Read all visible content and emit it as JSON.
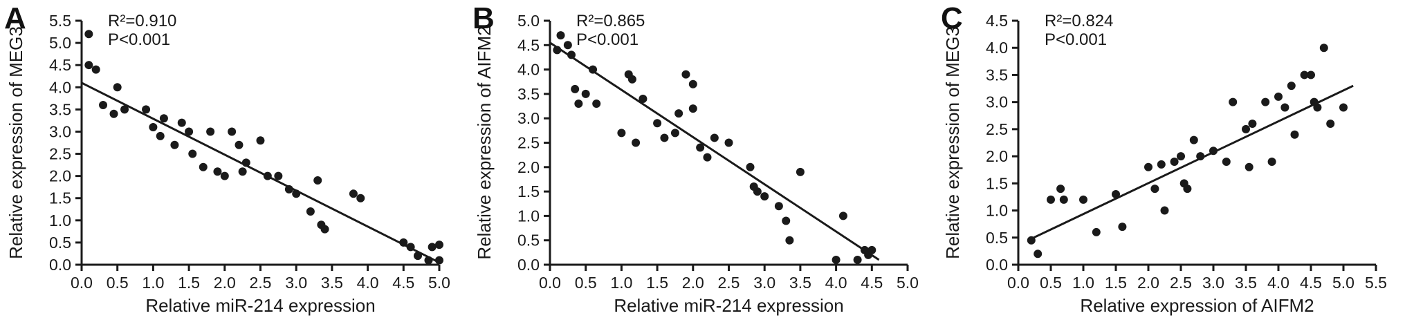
{
  "figure": {
    "background": "#ffffff",
    "ink_color": "#1a1a1a",
    "point_color": "#1a1a1a"
  },
  "chart_data": [
    {
      "type": "scatter",
      "panel_label": "A",
      "annotation": [
        "R²=0.910",
        "P<0.001"
      ],
      "xlabel": "Relative miR-214 expression",
      "ylabel": "Relative expression of MEG3",
      "xlim": [
        0,
        5.0
      ],
      "ylim": [
        0,
        5.5
      ],
      "xtick_step": 0.5,
      "ytick_step": 0.5,
      "legend": "none",
      "grid": false,
      "fit_line": {
        "x1": 0.0,
        "y1": 4.1,
        "x2": 5.0,
        "y2": 0.05
      },
      "points": [
        [
          0.1,
          5.2
        ],
        [
          0.1,
          4.5
        ],
        [
          0.2,
          4.4
        ],
        [
          0.3,
          3.6
        ],
        [
          0.45,
          3.4
        ],
        [
          0.5,
          4.0
        ],
        [
          0.6,
          3.5
        ],
        [
          0.9,
          3.5
        ],
        [
          1.0,
          3.1
        ],
        [
          1.1,
          2.9
        ],
        [
          1.15,
          3.3
        ],
        [
          1.3,
          2.7
        ],
        [
          1.4,
          3.2
        ],
        [
          1.5,
          3.0
        ],
        [
          1.55,
          2.5
        ],
        [
          1.7,
          2.2
        ],
        [
          1.8,
          3.0
        ],
        [
          1.9,
          2.1
        ],
        [
          2.0,
          2.0
        ],
        [
          2.1,
          3.0
        ],
        [
          2.2,
          2.7
        ],
        [
          2.25,
          2.1
        ],
        [
          2.3,
          2.3
        ],
        [
          2.5,
          2.8
        ],
        [
          2.6,
          2.0
        ],
        [
          2.75,
          2.0
        ],
        [
          2.9,
          1.7
        ],
        [
          3.0,
          1.6
        ],
        [
          3.2,
          1.2
        ],
        [
          3.3,
          1.9
        ],
        [
          3.35,
          0.9
        ],
        [
          3.4,
          0.8
        ],
        [
          3.8,
          1.6
        ],
        [
          3.9,
          1.5
        ],
        [
          4.5,
          0.5
        ],
        [
          4.6,
          0.4
        ],
        [
          4.7,
          0.2
        ],
        [
          4.85,
          0.1
        ],
        [
          4.9,
          0.4
        ],
        [
          5.0,
          0.1
        ],
        [
          5.0,
          0.45
        ]
      ]
    },
    {
      "type": "scatter",
      "panel_label": "B",
      "annotation": [
        "R²=0.865",
        "P<0.001"
      ],
      "xlabel": "Relative miR-214 expression",
      "ylabel": "Relative expression of AIFM2",
      "xlim": [
        0,
        5.0
      ],
      "ylim": [
        0,
        5.0
      ],
      "xtick_step": 0.5,
      "ytick_step": 0.5,
      "legend": "none",
      "grid": false,
      "fit_line": {
        "x1": 0.0,
        "y1": 4.55,
        "x2": 4.6,
        "y2": 0.1
      },
      "points": [
        [
          0.1,
          4.4
        ],
        [
          0.15,
          4.7
        ],
        [
          0.25,
          4.5
        ],
        [
          0.3,
          4.3
        ],
        [
          0.35,
          3.6
        ],
        [
          0.4,
          3.3
        ],
        [
          0.5,
          3.5
        ],
        [
          0.6,
          4.0
        ],
        [
          0.65,
          3.3
        ],
        [
          1.0,
          2.7
        ],
        [
          1.1,
          3.9
        ],
        [
          1.15,
          3.8
        ],
        [
          1.2,
          2.5
        ],
        [
          1.3,
          3.4
        ],
        [
          1.5,
          2.9
        ],
        [
          1.6,
          2.6
        ],
        [
          1.75,
          2.7
        ],
        [
          1.8,
          3.1
        ],
        [
          1.9,
          3.9
        ],
        [
          2.0,
          3.7
        ],
        [
          2.0,
          3.2
        ],
        [
          2.1,
          2.4
        ],
        [
          2.2,
          2.2
        ],
        [
          2.3,
          2.6
        ],
        [
          2.5,
          2.5
        ],
        [
          2.8,
          2.0
        ],
        [
          2.85,
          1.6
        ],
        [
          2.9,
          1.5
        ],
        [
          3.0,
          1.4
        ],
        [
          3.2,
          1.2
        ],
        [
          3.3,
          0.9
        ],
        [
          3.35,
          0.5
        ],
        [
          3.5,
          1.9
        ],
        [
          4.0,
          0.1
        ],
        [
          4.1,
          1.0
        ],
        [
          4.3,
          0.1
        ],
        [
          4.4,
          0.3
        ],
        [
          4.45,
          0.2
        ],
        [
          4.5,
          0.3
        ]
      ]
    },
    {
      "type": "scatter",
      "panel_label": "C",
      "annotation": [
        "R²=0.824",
        "P<0.001"
      ],
      "xlabel": "Relative expression of AIFM2",
      "ylabel": "Relative expression of MEG3",
      "xlim": [
        0,
        5.5
      ],
      "ylim": [
        0,
        4.5
      ],
      "xtick_step": 0.5,
      "ytick_step": 0.5,
      "legend": "none",
      "grid": false,
      "fit_line": {
        "x1": 0.15,
        "y1": 0.45,
        "x2": 5.15,
        "y2": 3.3
      },
      "points": [
        [
          0.2,
          0.45
        ],
        [
          0.3,
          0.2
        ],
        [
          0.5,
          1.2
        ],
        [
          0.65,
          1.4
        ],
        [
          0.7,
          1.2
        ],
        [
          1.0,
          1.2
        ],
        [
          1.2,
          0.6
        ],
        [
          1.5,
          1.3
        ],
        [
          1.6,
          0.7
        ],
        [
          2.0,
          1.8
        ],
        [
          2.1,
          1.4
        ],
        [
          2.2,
          1.85
        ],
        [
          2.25,
          1.0
        ],
        [
          2.4,
          1.9
        ],
        [
          2.5,
          2.0
        ],
        [
          2.55,
          1.5
        ],
        [
          2.6,
          1.4
        ],
        [
          2.7,
          2.3
        ],
        [
          2.8,
          2.0
        ],
        [
          3.0,
          2.1
        ],
        [
          3.2,
          1.9
        ],
        [
          3.3,
          3.0
        ],
        [
          3.5,
          2.5
        ],
        [
          3.55,
          1.8
        ],
        [
          3.6,
          2.6
        ],
        [
          3.8,
          3.0
        ],
        [
          3.9,
          1.9
        ],
        [
          4.0,
          3.1
        ],
        [
          4.1,
          2.9
        ],
        [
          4.2,
          3.3
        ],
        [
          4.25,
          2.4
        ],
        [
          4.4,
          3.5
        ],
        [
          4.5,
          3.5
        ],
        [
          4.55,
          3.0
        ],
        [
          4.6,
          2.9
        ],
        [
          4.7,
          4.0
        ],
        [
          4.8,
          2.6
        ],
        [
          5.0,
          2.9
        ]
      ]
    }
  ]
}
